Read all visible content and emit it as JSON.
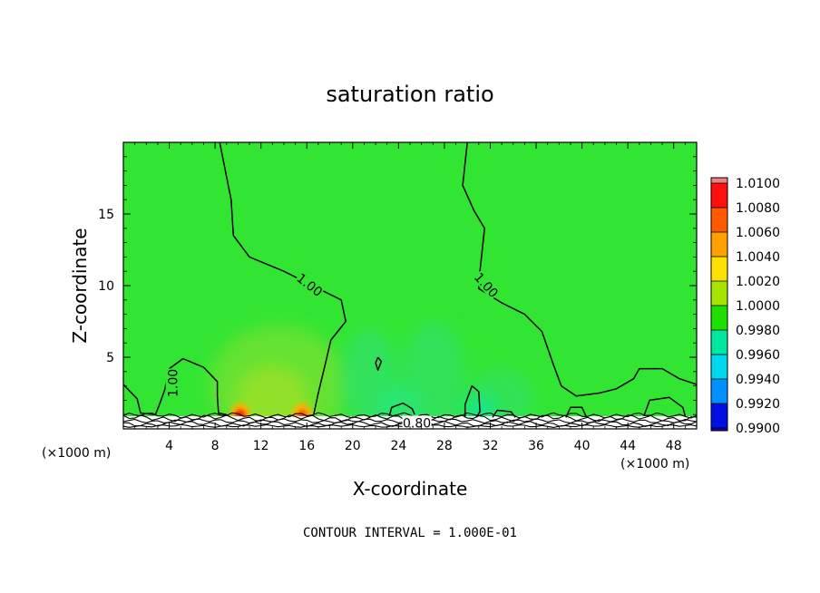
{
  "chart_data": {
    "type": "heatmap",
    "title": "saturation ratio",
    "xlabel": "X-coordinate",
    "ylabel": "Z-coordinate",
    "x_unit": "(×1000 m)",
    "xlim": [
      0,
      50
    ],
    "ylim": [
      0,
      20
    ],
    "x_ticks": [
      4,
      8,
      12,
      16,
      20,
      24,
      28,
      32,
      36,
      40,
      44,
      48
    ],
    "y_ticks": [
      5,
      10,
      15
    ],
    "colorbar": {
      "levels": [
        "1.0100",
        "1.0080",
        "1.0060",
        "1.0040",
        "1.0020",
        "1.0000",
        "0.9980",
        "0.9960",
        "0.9940",
        "0.9920",
        "0.9900"
      ],
      "colors": [
        "#ee8080",
        "#ff1010",
        "#ff5a00",
        "#ffa000",
        "#ffe000",
        "#a6e300",
        "#20e000",
        "#00e8a0",
        "#00d8f0",
        "#0090ff",
        "#0010e0",
        "#1a00b0",
        "#6a10a8"
      ]
    },
    "background_color": "#33e533",
    "contour_labels": [
      "1.00",
      "1.00",
      "1.00",
      "0.80"
    ],
    "footnote": "CONTOUR INTERVAL = 1.000E-01",
    "blobs": [
      {
        "x": 13.5,
        "z": 3.0,
        "rx": 6.0,
        "rz": 4.2,
        "color": "#8fe030",
        "opacity": 0.55
      },
      {
        "x": 13.0,
        "z": 2.0,
        "rx": 3.2,
        "rz": 2.4,
        "color": "#b8e020",
        "opacity": 0.55
      },
      {
        "x": 10.2,
        "z": 0.9,
        "rx": 0.9,
        "rz": 0.9,
        "color": "#ffb000",
        "opacity": 0.9
      },
      {
        "x": 10.2,
        "z": 0.9,
        "rx": 0.45,
        "rz": 0.45,
        "color": "#ff2000",
        "opacity": 1
      },
      {
        "x": 15.6,
        "z": 0.9,
        "rx": 0.9,
        "rz": 0.9,
        "color": "#ffb000",
        "opacity": 0.9
      },
      {
        "x": 15.6,
        "z": 0.9,
        "rx": 0.4,
        "rz": 0.4,
        "color": "#ff4000",
        "opacity": 1
      },
      {
        "x": 21.5,
        "z": 3.5,
        "rx": 2.5,
        "rz": 3.5,
        "color": "#30e080",
        "opacity": 0.55
      },
      {
        "x": 27.0,
        "z": 3.5,
        "rx": 2.8,
        "rz": 4.0,
        "color": "#30e080",
        "opacity": 0.5
      },
      {
        "x": 33.0,
        "z": 2.0,
        "rx": 2.8,
        "rz": 2.2,
        "color": "#30e080",
        "opacity": 0.45
      },
      {
        "x": 31.0,
        "z": 1.2,
        "rx": 1.5,
        "rz": 1.2,
        "color": "#00e8c0",
        "opacity": 0.5
      },
      {
        "x": 24.0,
        "z": 1.5,
        "rx": 2.0,
        "rz": 1.5,
        "color": "#20e8a0",
        "opacity": 0.45
      }
    ],
    "contours": [
      [
        [
          8.4,
          20
        ],
        [
          9.4,
          16
        ],
        [
          9.6,
          13.5
        ],
        [
          11,
          12
        ],
        [
          14,
          11
        ],
        [
          17,
          9.8
        ],
        [
          19,
          9
        ],
        [
          19.4,
          7.5
        ],
        [
          18.1,
          6.2
        ],
        [
          17.6,
          4.5
        ],
        [
          17,
          2.5
        ],
        [
          16.6,
          1.0
        ]
      ],
      [
        [
          30,
          20
        ],
        [
          29.6,
          17
        ],
        [
          30.6,
          15.2
        ],
        [
          31.5,
          14
        ],
        [
          31.1,
          11
        ],
        [
          31,
          9.8
        ],
        [
          33,
          8.8
        ],
        [
          35,
          8
        ],
        [
          36.5,
          6.8
        ],
        [
          37.5,
          4.5
        ],
        [
          38.2,
          3.0
        ],
        [
          39.5,
          2.3
        ],
        [
          41.5,
          2.5
        ],
        [
          43,
          2.8
        ],
        [
          44.5,
          3.5
        ],
        [
          45,
          4.2
        ],
        [
          47,
          4.2
        ],
        [
          48.5,
          3.5
        ],
        [
          50,
          3.1
        ]
      ],
      [
        [
          0,
          3.1
        ],
        [
          1.2,
          2.1
        ],
        [
          1.5,
          1.1
        ],
        [
          2.8,
          1.0
        ],
        [
          3.1,
          1.6
        ],
        [
          3.6,
          2.7
        ],
        [
          4,
          4.2
        ],
        [
          5.2,
          4.9
        ],
        [
          7,
          4.3
        ],
        [
          8.2,
          3.3
        ],
        [
          8.2,
          2.3
        ],
        [
          8.3,
          1.1
        ],
        [
          9.0,
          1.0
        ]
      ],
      [
        [
          23.2,
          0.9
        ],
        [
          23.4,
          1.5
        ],
        [
          24.4,
          1.8
        ],
        [
          25.2,
          1.4
        ],
        [
          25.4,
          1.0
        ]
      ],
      [
        [
          29.8,
          0.8
        ],
        [
          29.8,
          1.7
        ],
        [
          30.4,
          3.0
        ],
        [
          31.0,
          2.6
        ],
        [
          31.1,
          1.2
        ],
        [
          30.8,
          0.8
        ]
      ],
      [
        [
          32.2,
          0.8
        ],
        [
          32.6,
          1.3
        ],
        [
          33.8,
          1.2
        ],
        [
          34.2,
          0.8
        ]
      ],
      [
        [
          38.6,
          0.8
        ],
        [
          39.0,
          1.5
        ],
        [
          40.0,
          1.5
        ],
        [
          40.4,
          0.8
        ]
      ],
      [
        [
          45.4,
          0.9
        ],
        [
          45.9,
          2.0
        ],
        [
          47.6,
          2.2
        ],
        [
          48.8,
          1.5
        ],
        [
          49.0,
          0.9
        ]
      ],
      [
        [
          22.2,
          5.0
        ],
        [
          22.0,
          4.6
        ],
        [
          22.2,
          4.1
        ],
        [
          22.5,
          4.7
        ],
        [
          22.2,
          5.0
        ]
      ]
    ],
    "surface_lines": [
      {
        "z": 0.95,
        "amp": 0.12
      },
      {
        "z": 0.75,
        "amp": 0.15
      },
      {
        "z": 0.55,
        "amp": 0.1
      },
      {
        "z": 0.35,
        "amp": 0.12
      },
      {
        "z": 0.2,
        "amp": 0.06
      }
    ]
  }
}
